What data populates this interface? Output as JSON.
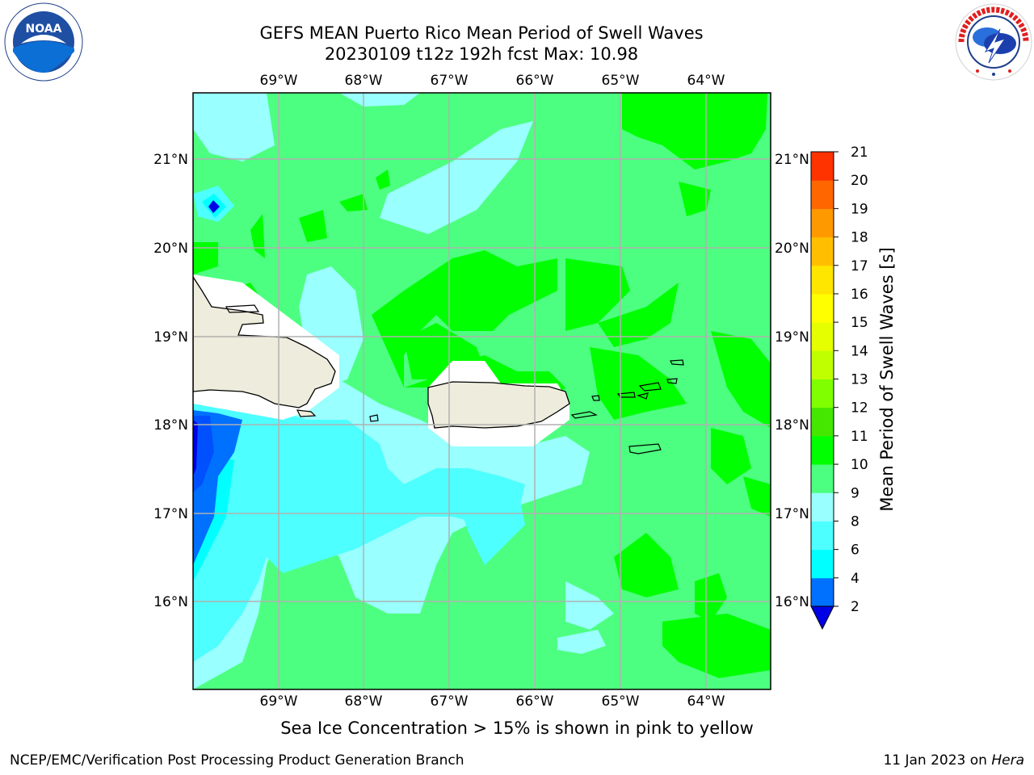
{
  "header": {
    "title_line1": "GEFS MEAN Puerto Rico Mean Period of Swell Waves",
    "title_line2": "20230109 t12z 192h fcst   Max: 10.98"
  },
  "logos": {
    "left": {
      "name": "NOAA",
      "ring_text": "NATIONAL OCEANIC AND ATMOSPHERIC ADMINISTRATION · U.S. DEPARTMENT OF COMMERCE"
    },
    "right": {
      "ring_text": "NATIONAL WEATHER SERVICE"
    }
  },
  "map": {
    "lon_labels": [
      "69°W",
      "68°W",
      "67°W",
      "66°W",
      "65°W",
      "64°W"
    ],
    "lat_labels": [
      "21°N",
      "20°N",
      "19°N",
      "18°N",
      "17°N",
      "16°N"
    ],
    "colors": {
      "land": "#eeecdc",
      "coast": "#000000",
      "grid": "#b0b0b0"
    }
  },
  "colorbar": {
    "label": "Mean Period of Swell Waves [s]",
    "ticks": [
      "2",
      "4",
      "6",
      "8",
      "9",
      "10",
      "11",
      "12",
      "13",
      "14",
      "15",
      "16",
      "17",
      "18",
      "19",
      "20",
      "21"
    ],
    "colors": [
      "#0070ff",
      "#00ffff",
      "#4dffff",
      "#99ffff",
      "#4dff80",
      "#00ff00",
      "#45e600",
      "#80ff00",
      "#bfff00",
      "#e6ff00",
      "#ffff00",
      "#ffe600",
      "#ffbf00",
      "#ff9900",
      "#ff6600",
      "#ff3300",
      "#ff0000"
    ],
    "under_color": "#0000e6"
  },
  "chart_data": {
    "type": "heatmap",
    "title": "GEFS MEAN Puerto Rico Mean Period of Swell Waves",
    "subtitle": "20230109 t12z 192h fcst   Max: 10.98",
    "x_range": [
      -70,
      -63.3
    ],
    "y_range": [
      15,
      21.7
    ],
    "max_value": 10.98,
    "color_levels": [
      2,
      4,
      6,
      8,
      9,
      10,
      11,
      12,
      13,
      14,
      15,
      16,
      17,
      18,
      19,
      20,
      21
    ],
    "legend": "right"
  },
  "caption": "Sea Ice Concentration > 15% is shown in pink to yellow",
  "footer": {
    "left": "NCEP/EMC/Verification Post Processing Product Generation Branch",
    "right_date": "11 Jan 2023 on ",
    "right_host": "Hera"
  }
}
